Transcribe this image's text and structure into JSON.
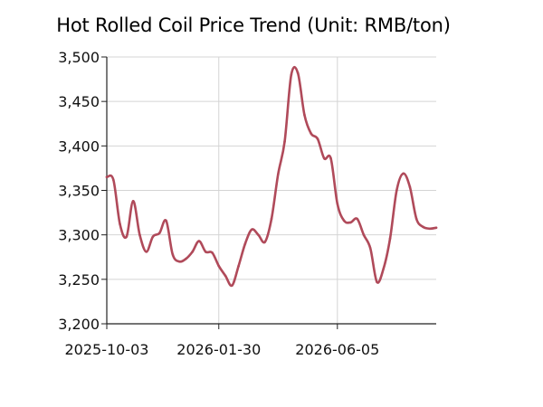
{
  "chart_data": {
    "type": "line",
    "title": "Hot Rolled Coil Price Trend (Unit: RMB/ton)",
    "xlabel": "",
    "ylabel": "",
    "ylim": [
      3200,
      3500
    ],
    "yticks": [
      "3,200",
      "3,250",
      "3,300",
      "3,350",
      "3,400",
      "3,450",
      "3,500"
    ],
    "xlim": [
      "2025-10-03",
      "2026-09-18"
    ],
    "xticks": [
      "2025-10-03",
      "2026-01-30",
      "2026-06-05"
    ],
    "grid": true,
    "legend": "none",
    "colors": {
      "line": "#b04a5a",
      "grid": "#d4d4d4",
      "axis": "#222222"
    },
    "series": [
      {
        "x": [
          "2025-10-03",
          "2025-10-10",
          "2025-10-17",
          "2025-10-24",
          "2025-10-31",
          "2025-11-07",
          "2025-11-14",
          "2025-11-21",
          "2025-11-28",
          "2025-12-05",
          "2025-12-12",
          "2025-12-19",
          "2025-12-26",
          "2026-01-02",
          "2026-01-09",
          "2026-01-16",
          "2026-01-23",
          "2026-01-30",
          "2026-02-06",
          "2026-02-13",
          "2026-02-20",
          "2026-02-27",
          "2026-03-06",
          "2026-03-13",
          "2026-03-20",
          "2026-03-27",
          "2026-04-03",
          "2026-04-10",
          "2026-04-17",
          "2026-04-24",
          "2026-05-01",
          "2026-05-08",
          "2026-05-15",
          "2026-05-22",
          "2026-05-29",
          "2026-06-05",
          "2026-06-12",
          "2026-06-19",
          "2026-06-26",
          "2026-07-03",
          "2026-07-10",
          "2026-07-17",
          "2026-07-24",
          "2026-07-31",
          "2026-08-07",
          "2026-08-14",
          "2026-08-21",
          "2026-08-28",
          "2026-09-04",
          "2026-09-11",
          "2026-09-18"
        ],
        "values": [
          3365,
          3362,
          3312,
          3298,
          3338,
          3300,
          3281,
          3298,
          3302,
          3316,
          3278,
          3270,
          3273,
          3281,
          3293,
          3281,
          3280,
          3265,
          3254,
          3243,
          3265,
          3290,
          3306,
          3300,
          3292,
          3318,
          3368,
          3405,
          3480,
          3482,
          3435,
          3414,
          3408,
          3386,
          3386,
          3335,
          3316,
          3314,
          3318,
          3300,
          3285,
          3247,
          3262,
          3296,
          3350,
          3369,
          3354,
          3318,
          3309,
          3307,
          3308
        ]
      }
    ]
  }
}
